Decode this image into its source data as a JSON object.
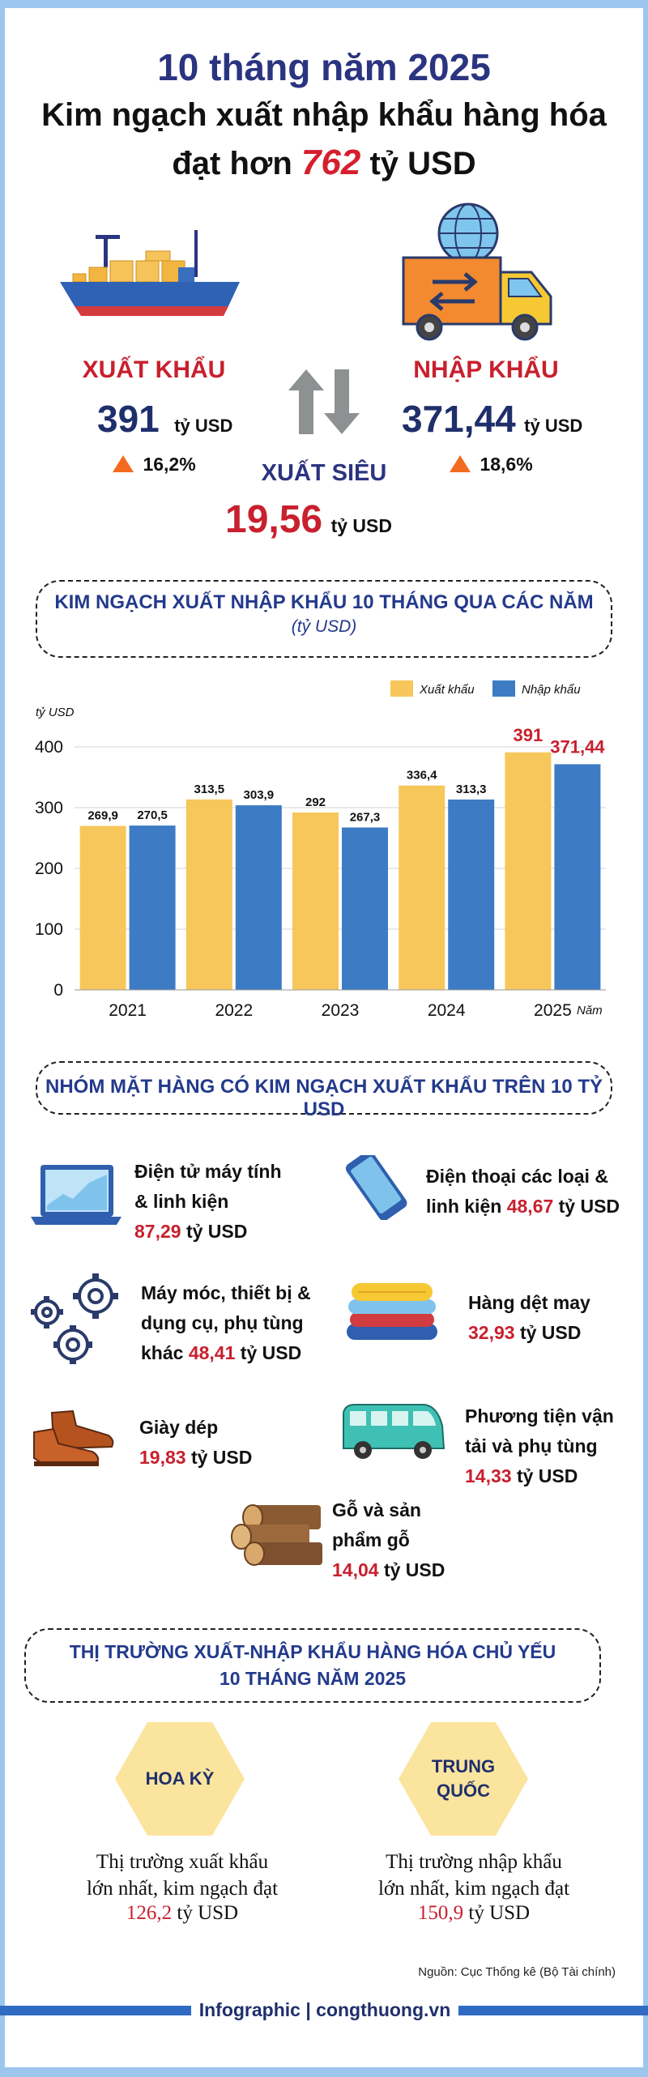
{
  "header": {
    "subtitle": "10 tháng năm 2025",
    "title_line1": "Kim ngạch xuất nhập khẩu hàng hóa",
    "title_line2_prefix": "đạt hơn",
    "title_total": "762",
    "title_line2_suffix": "tỷ USD"
  },
  "summary": {
    "export": {
      "label": "XUẤT KHẨU",
      "value": "391",
      "unit": "tỷ USD",
      "growth": "16,2%"
    },
    "import": {
      "label": "NHẬP KHẨU",
      "value": "371,44",
      "unit": "tỷ USD",
      "growth": "18,6%"
    },
    "surplus": {
      "label": "XUẤT SIÊU",
      "value": "19,56",
      "unit": "tỷ USD"
    }
  },
  "section1": {
    "title": "KIM NGẠCH XUẤT NHẬP KHẨU 10 THÁNG QUA CÁC NĂM",
    "subtitle": "(tỷ USD)"
  },
  "chart_data": {
    "type": "bar",
    "ylabel": "tỷ USD",
    "xlabel": "Năm",
    "categories": [
      "2021",
      "2022",
      "2023",
      "2024",
      "2025"
    ],
    "yticks": [
      "0",
      "100",
      "200",
      "300",
      "400"
    ],
    "ylim": [
      0,
      400
    ],
    "legend_position": "top-right",
    "series": [
      {
        "name": "Xuất khẩu",
        "color": "#f7c75b",
        "values": [
          269.9,
          313.5,
          292,
          336.4,
          391
        ],
        "labels": [
          "269,9",
          "313,5",
          "292",
          "336,4",
          "391"
        ]
      },
      {
        "name": "Nhập khẩu",
        "color": "#3d7cc4",
        "values": [
          270.5,
          303.9,
          267.3,
          313.3,
          371.44
        ],
        "labels": [
          "270,5",
          "303,9",
          "267,3",
          "313,3",
          "371,44"
        ]
      }
    ]
  },
  "section2": {
    "title": "NHÓM MẶT HÀNG CÓ KIM NGẠCH XUẤT KHẨU TRÊN 10 TỶ USD"
  },
  "items": [
    {
      "name1": "Điện tử máy tính",
      "name2": "& linh kiện",
      "value": "87,29",
      "unit": "tỷ USD",
      "icon": "laptop-icon"
    },
    {
      "name1": "Điện thoại các loại &",
      "name2": "linh kiện",
      "value": "48,67",
      "unit": "tỷ USD",
      "icon": "phone-icon"
    },
    {
      "name1": "Máy móc, thiết bị &",
      "name2": "dụng cụ, phụ tùng",
      "name3": "khác",
      "value": "48,41",
      "unit": "tỷ USD",
      "icon": "gears-icon"
    },
    {
      "name1": "Hàng dệt may",
      "value": "32,93",
      "unit": "tỷ USD",
      "icon": "textile-icon"
    },
    {
      "name1": "Giày dép",
      "value": "19,83",
      "unit": "tỷ USD",
      "icon": "shoes-icon"
    },
    {
      "name1": "Phương tiện vận",
      "name2": "tải và phụ tùng",
      "value": "14,33",
      "unit": "tỷ USD",
      "icon": "van-icon"
    },
    {
      "name1": "Gỗ và sản",
      "name2": "phẩm gỗ",
      "value": "14,04",
      "unit": "tỷ USD",
      "icon": "wood-icon"
    }
  ],
  "section3": {
    "title_line1": "THỊ TRƯỜNG XUẤT-NHẬP KHẨU HÀNG HÓA CHỦ YẾU",
    "title_line2": "10 THÁNG NĂM 2025"
  },
  "markets": [
    {
      "name": "HOA KỲ",
      "desc1": "Thị trường xuất khẩu",
      "desc2": "lớn nhất, kim ngạch đạt",
      "value": "126,2",
      "unit": "tỷ USD"
    },
    {
      "name1": "TRUNG",
      "name2": "QUỐC",
      "desc1": "Thị trường nhập khẩu",
      "desc2": "lớn nhất, kim ngạch đạt",
      "value": "150,9",
      "unit": "tỷ USD"
    }
  ],
  "footer": {
    "source": "Nguồn: Cục Thống kê (Bộ Tài chính)",
    "brand": "Infographic | congthuong.vn"
  },
  "colors": {
    "navy": "#1f2f6b",
    "red": "#c8202e",
    "export_bar": "#f7c75b",
    "import_bar": "#3d7cc4"
  }
}
